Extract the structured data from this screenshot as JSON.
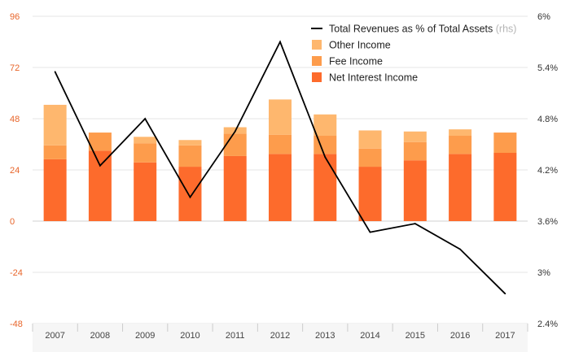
{
  "chart_data": {
    "type": "bar",
    "categories": [
      "2007",
      "2008",
      "2009",
      "2010",
      "2011",
      "2012",
      "2013",
      "2014",
      "2015",
      "2016",
      "2017"
    ],
    "series": [
      {
        "name": "Net Interest Income",
        "kind": "bar",
        "axis": "left",
        "color": "#fd6b2c",
        "values": [
          29,
          33,
          27.5,
          25.5,
          30.5,
          31.5,
          31.5,
          25.5,
          28.5,
          31.5,
          32
        ]
      },
      {
        "name": "Fee Income",
        "kind": "bar",
        "axis": "left",
        "color": "#fd9c4c",
        "values": [
          6.5,
          8.5,
          9,
          10,
          10.5,
          9,
          8.5,
          8.5,
          8.5,
          8.5,
          9.5
        ]
      },
      {
        "name": "Other Income",
        "kind": "bar",
        "axis": "left",
        "color": "#feb76e",
        "values": [
          19,
          0,
          3,
          2.5,
          3,
          16.5,
          10,
          8.5,
          5,
          3,
          0
        ]
      },
      {
        "name": "Total Revenues as % of Total Assets",
        "name_suffix": "(rhs)",
        "kind": "line",
        "axis": "right",
        "color": "#000000",
        "values": [
          5.35,
          4.25,
          4.8,
          3.88,
          4.65,
          5.7,
          4.35,
          3.47,
          3.57,
          3.27,
          2.75
        ]
      }
    ],
    "legend_order": [
      "Total Revenues as % of Total Assets",
      "Other Income",
      "Fee Income",
      "Net Interest Income"
    ],
    "legend_position": "top-right",
    "y_left": {
      "min": -48,
      "max": 96,
      "ticks": [
        "96",
        "72",
        "48",
        "24",
        "0",
        "-24",
        "-48"
      ],
      "tick_values": [
        96,
        72,
        48,
        24,
        0,
        -24,
        -48
      ]
    },
    "y_right": {
      "min": 2.4,
      "max": 6.0,
      "ticks": [
        "6%",
        "5.4%",
        "4.8%",
        "4.2%",
        "3.6%",
        "3%",
        "2.4%"
      ],
      "tick_values": [
        6.0,
        5.4,
        4.8,
        4.2,
        3.6,
        3.0,
        2.4
      ]
    },
    "grid": true,
    "colors": {
      "left_ticks": "#e8652a",
      "right_ticks": "#333333",
      "grid": "#e6e6e6",
      "zero_line": "#d0d0d0"
    }
  }
}
